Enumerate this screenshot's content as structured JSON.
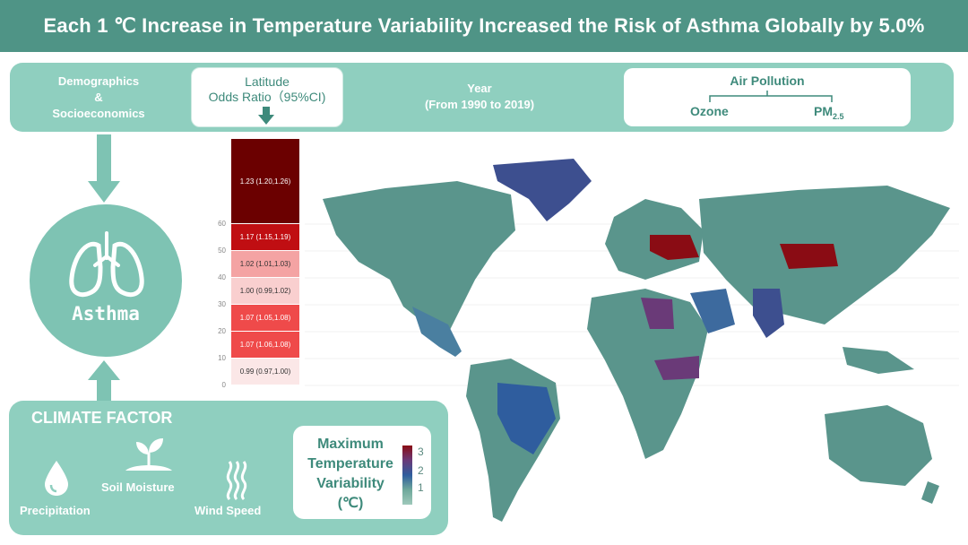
{
  "title": "Each 1 ℃ Increase in Temperature Variability Increased the Risk of Asthma Globally by 5.0%",
  "top_band": {
    "demographics": [
      "Demographics",
      "&",
      "Socioeconomics"
    ],
    "latitude_title": "Latitude",
    "latitude_subtitle": "Odds Ratio（95%CI)",
    "year": "Year",
    "year_range": "(From 1990 to 2019)",
    "air_pollution": "Air Pollution",
    "ozone": "Ozone",
    "pm": "PM",
    "pm_sub": "2.5"
  },
  "center": {
    "asthma_label": "Asthma"
  },
  "climate": {
    "title": "CLIMATE FACTOR",
    "precipitation": "Precipitation",
    "soil_moisture": "Soil Moisture",
    "wind_speed": "Wind Speed"
  },
  "legend": {
    "title_lines": [
      "Maximum",
      "Temperature",
      "Variability",
      "(℃)"
    ],
    "ticks": [
      "3",
      "2",
      "1"
    ]
  },
  "latitude_chart": {
    "y_ticks": [
      "60",
      "50",
      "40",
      "30",
      "20",
      "10",
      "0"
    ],
    "bands": [
      {
        "label": "1.23 (1.20,1.26)",
        "from": 60,
        "to": 90,
        "color": "#6b0000"
      },
      {
        "label": "1.17 (1.15,1.19)",
        "from": 50,
        "to": 60,
        "color": "#c00e12"
      },
      {
        "label": "1.02 (1.01,1.03)",
        "from": 40,
        "to": 50,
        "color": "#f4a3a3"
      },
      {
        "label": "1.00 (0.99,1.02)",
        "from": 30,
        "to": 40,
        "color": "#f9cfcf"
      },
      {
        "label": "1.07 (1.05,1.08)",
        "from": 20,
        "to": 30,
        "color": "#ef4a4a"
      },
      {
        "label": "1.07 (1.06,1.08)",
        "from": 10,
        "to": 20,
        "color": "#ef4a4a"
      },
      {
        "label": "0.99 (0.97,1.00)",
        "from": 0,
        "to": 10,
        "color": "#fbe7e7"
      }
    ]
  },
  "colors": {
    "header": "#4f9486",
    "band": "#8fcfbf",
    "circle": "#7ec3b3",
    "text_green": "#3e8a7b",
    "map_base": "#5a958c"
  }
}
